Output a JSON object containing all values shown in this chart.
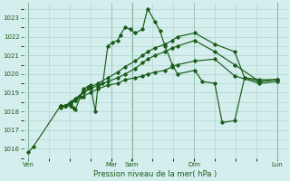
{
  "xlabel": "Pression niveau de la mer( hPa )",
  "bg_color": "#d4eeed",
  "grid_color": "#aad4cc",
  "line_color": "#1a5c1a",
  "ylim": [
    1015.5,
    1023.8
  ],
  "yticks": [
    1016,
    1017,
    1018,
    1019,
    1020,
    1021,
    1022,
    1023
  ],
  "day_labels": [
    "Ven",
    "",
    "Mar",
    "Sam",
    "",
    "Dim",
    "",
    "Lun"
  ],
  "day_positions": [
    0.0,
    0.167,
    0.333,
    0.417,
    0.583,
    0.667,
    0.833,
    1.0
  ],
  "vline_positions": [
    0.0,
    0.333,
    0.417,
    0.667,
    1.0
  ],
  "line1_x": [
    0.0,
    0.02,
    0.13,
    0.15,
    0.17,
    0.18,
    0.19,
    0.21,
    0.22,
    0.24,
    0.25,
    0.27,
    0.28,
    0.3,
    0.32,
    0.34,
    0.36,
    0.37,
    0.39,
    0.41,
    0.43,
    0.46,
    0.48,
    0.51,
    0.53,
    0.55,
    0.58,
    0.6,
    0.67,
    0.7,
    0.75,
    0.78,
    0.83,
    0.87,
    0.93,
    1.0
  ],
  "line1_y": [
    1015.8,
    1016.1,
    1018.3,
    1018.3,
    1018.3,
    1018.2,
    1018.1,
    1018.8,
    1019.2,
    1019.3,
    1019.4,
    1018.0,
    1019.3,
    1019.5,
    1021.5,
    1021.7,
    1021.8,
    1022.1,
    1022.5,
    1022.4,
    1022.2,
    1022.4,
    1023.5,
    1022.8,
    1022.3,
    1021.5,
    1020.5,
    1020.0,
    1020.2,
    1019.6,
    1019.5,
    1017.4,
    1017.5,
    1019.8,
    1019.7,
    1019.7
  ],
  "line2_x": [
    0.13,
    0.15,
    0.17,
    0.19,
    0.22,
    0.25,
    0.28,
    0.32,
    0.36,
    0.39,
    0.43,
    0.46,
    0.48,
    0.51,
    0.55,
    0.58,
    0.6,
    0.67,
    0.75,
    0.83,
    0.87,
    0.93,
    1.0
  ],
  "line2_y": [
    1018.3,
    1018.3,
    1018.4,
    1018.6,
    1019.0,
    1019.3,
    1019.5,
    1019.8,
    1020.1,
    1020.4,
    1020.7,
    1021.0,
    1021.2,
    1021.4,
    1021.6,
    1021.8,
    1022.0,
    1022.2,
    1021.6,
    1021.2,
    1019.8,
    1019.6,
    1019.7
  ],
  "line3_x": [
    0.13,
    0.15,
    0.17,
    0.19,
    0.22,
    0.25,
    0.28,
    0.32,
    0.36,
    0.39,
    0.43,
    0.46,
    0.48,
    0.51,
    0.55,
    0.58,
    0.6,
    0.67,
    0.75,
    0.83,
    0.93,
    1.0
  ],
  "line3_y": [
    1018.3,
    1018.3,
    1018.5,
    1018.7,
    1019.0,
    1019.2,
    1019.4,
    1019.6,
    1019.8,
    1020.0,
    1020.3,
    1020.6,
    1020.8,
    1021.0,
    1021.2,
    1021.4,
    1021.5,
    1021.8,
    1021.2,
    1020.5,
    1019.6,
    1019.7
  ],
  "line4_x": [
    0.13,
    0.15,
    0.17,
    0.19,
    0.22,
    0.25,
    0.28,
    0.32,
    0.36,
    0.39,
    0.43,
    0.46,
    0.48,
    0.51,
    0.55,
    0.58,
    0.6,
    0.67,
    0.75,
    0.83,
    0.93,
    1.0
  ],
  "line4_y": [
    1018.2,
    1018.3,
    1018.5,
    1018.6,
    1018.8,
    1019.0,
    1019.2,
    1019.4,
    1019.5,
    1019.7,
    1019.8,
    1019.9,
    1020.0,
    1020.1,
    1020.2,
    1020.4,
    1020.5,
    1020.7,
    1020.8,
    1019.9,
    1019.5,
    1019.6
  ]
}
